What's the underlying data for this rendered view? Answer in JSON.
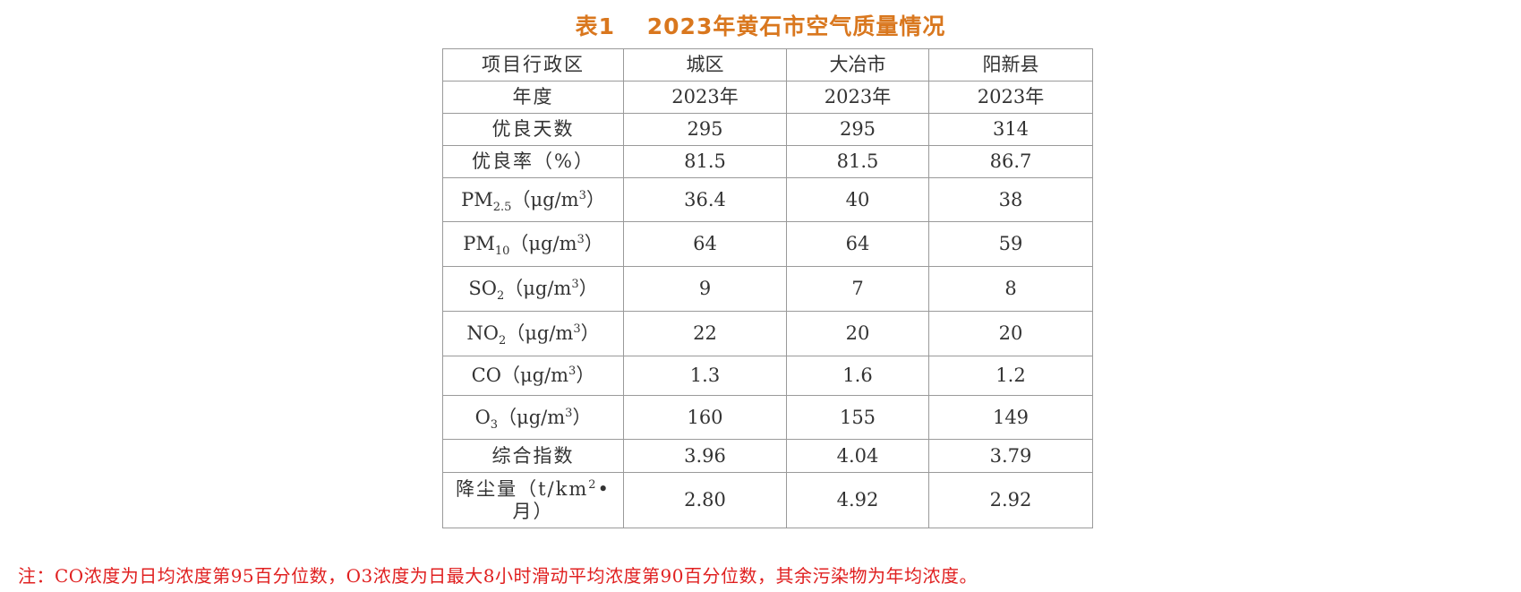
{
  "title": "表1　 2023年黄石市空气质量情况",
  "table": {
    "header": {
      "label": "项目行政区",
      "columns": [
        "城区",
        "大冶市",
        "阳新县"
      ]
    },
    "rows": [
      {
        "label": "年度",
        "values": [
          "2023年",
          "2023年",
          "2023年"
        ]
      },
      {
        "label": "优良天数",
        "values": [
          "295",
          "295",
          "314"
        ]
      },
      {
        "label": "优良率（%）",
        "values": [
          "81.5",
          "81.5",
          "86.7"
        ]
      },
      {
        "label_main": "PM",
        "label_sub": "2.5",
        "label_unit_pre": "（μg/m",
        "label_unit_sup": "3",
        "label_unit_post": "）",
        "values": [
          "36.4",
          "40",
          "38"
        ]
      },
      {
        "label_main": "PM",
        "label_sub": "10",
        "label_unit_pre": "（μg/m",
        "label_unit_sup": "3",
        "label_unit_post": "）",
        "values": [
          "64",
          "64",
          "59"
        ]
      },
      {
        "label_main": "SO",
        "label_sub": "2",
        "label_unit_pre": "（μg/m",
        "label_unit_sup": "3",
        "label_unit_post": "）",
        "values": [
          "9",
          "7",
          "8"
        ]
      },
      {
        "label_main": "NO",
        "label_sub": "2",
        "label_unit_pre": "（μg/m",
        "label_unit_sup": "3",
        "label_unit_post": "）",
        "values": [
          "22",
          "20",
          "20"
        ]
      },
      {
        "label_main": "CO",
        "label_unit_pre": "（μg/m",
        "label_unit_sup": "3",
        "label_unit_post": "）",
        "values": [
          "1.3",
          "1.6",
          "1.2"
        ]
      },
      {
        "label_main": "O",
        "label_sub": "3",
        "label_unit_pre": "（μg/m",
        "label_unit_sup": "3",
        "label_unit_post": "）",
        "values": [
          "160",
          "155",
          "149"
        ]
      },
      {
        "label": "综合指数",
        "values": [
          "3.96",
          "4.04",
          "3.79"
        ]
      },
      {
        "label_line1_pre": "降尘量（t/km",
        "label_line1_sup": "2",
        "label_line1_post": "•",
        "label_line2": "月）",
        "values": [
          "2.80",
          "4.92",
          "2.92"
        ]
      }
    ]
  },
  "note": "注：CO浓度为日均浓度第95百分位数，O3浓度为日最大8小时滑动平均浓度第90百分位数，其余污染物为年均浓度。",
  "colors": {
    "title": "#d9771e",
    "note": "#e02020",
    "border": "#9a9a9a",
    "text": "#333333"
  }
}
